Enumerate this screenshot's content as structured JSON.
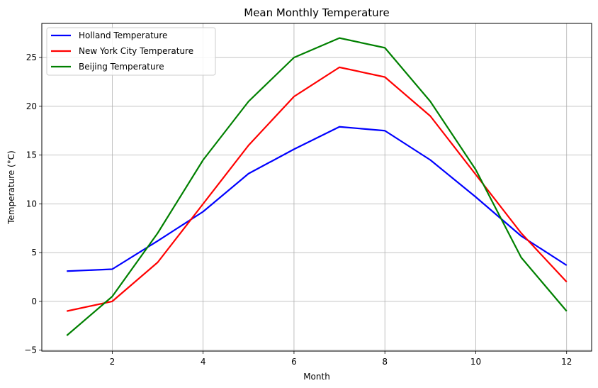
{
  "chart_data": {
    "type": "line",
    "title": "Mean Monthly Temperature",
    "xlabel": "Month",
    "ylabel": "Temperature (°C)",
    "x": [
      1,
      2,
      3,
      4,
      5,
      6,
      7,
      8,
      9,
      10,
      11,
      12
    ],
    "xlim": [
      0.45,
      12.55
    ],
    "ylim": [
      -5.1,
      28.5
    ],
    "xticks": [
      2,
      4,
      6,
      8,
      10,
      12
    ],
    "yticks": [
      -5,
      0,
      5,
      10,
      15,
      20,
      25
    ],
    "grid": true,
    "legend_position": "upper-left",
    "series": [
      {
        "name": "Holland Temperature",
        "color": "#0000ff",
        "values": [
          3.1,
          3.3,
          6.2,
          9.2,
          13.1,
          15.6,
          17.9,
          17.5,
          14.5,
          10.7,
          6.7,
          3.7
        ]
      },
      {
        "name": "New York City Temperature",
        "color": "#ff0000",
        "values": [
          -1.0,
          0.0,
          4.0,
          10.0,
          16.0,
          21.0,
          24.0,
          23.0,
          19.0,
          13.0,
          7.0,
          2.0
        ]
      },
      {
        "name": "Beijing Temperature",
        "color": "#008000",
        "values": [
          -3.5,
          0.5,
          7.0,
          14.5,
          20.5,
          25.0,
          27.0,
          26.0,
          20.5,
          13.5,
          4.5,
          -1.0
        ]
      }
    ]
  }
}
